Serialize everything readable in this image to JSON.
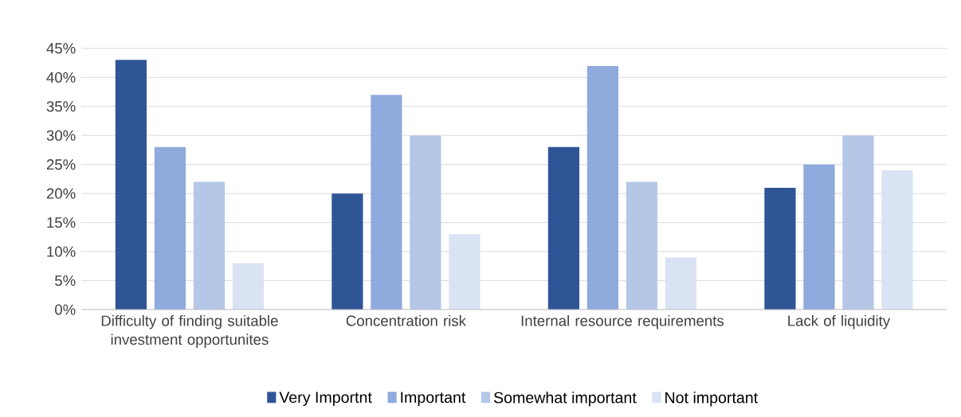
{
  "chart_data": {
    "type": "bar",
    "categories": [
      "Difficulty of finding suitable investment opportunites",
      "Concentration risk",
      "Internal resource requirements",
      "Lack of liquidity"
    ],
    "series": [
      {
        "name": "Very Importnt",
        "color": "#2f5597",
        "values": [
          43,
          20,
          28,
          21
        ]
      },
      {
        "name": "Important",
        "color": "#8faadc",
        "values": [
          28,
          37,
          42,
          25
        ]
      },
      {
        "name": "Somewhat important",
        "color": "#b4c7e7",
        "values": [
          22,
          30,
          22,
          30
        ]
      },
      {
        "name": "Not important",
        "color": "#dae3f3",
        "values": [
          8,
          13,
          9,
          24
        ]
      }
    ],
    "ylim": [
      0,
      45
    ],
    "yticks": [
      {
        "value": 0,
        "label": "0%"
      },
      {
        "value": 5,
        "label": "5%"
      },
      {
        "value": 10,
        "label": "10%"
      },
      {
        "value": 15,
        "label": "15%"
      },
      {
        "value": 20,
        "label": "20%"
      },
      {
        "value": 25,
        "label": "25%"
      },
      {
        "value": 30,
        "label": "30%"
      },
      {
        "value": 35,
        "label": "35%"
      },
      {
        "value": 40,
        "label": "40%"
      },
      {
        "value": 45,
        "label": "45%"
      }
    ],
    "grid": "y",
    "legend": "bottom"
  }
}
